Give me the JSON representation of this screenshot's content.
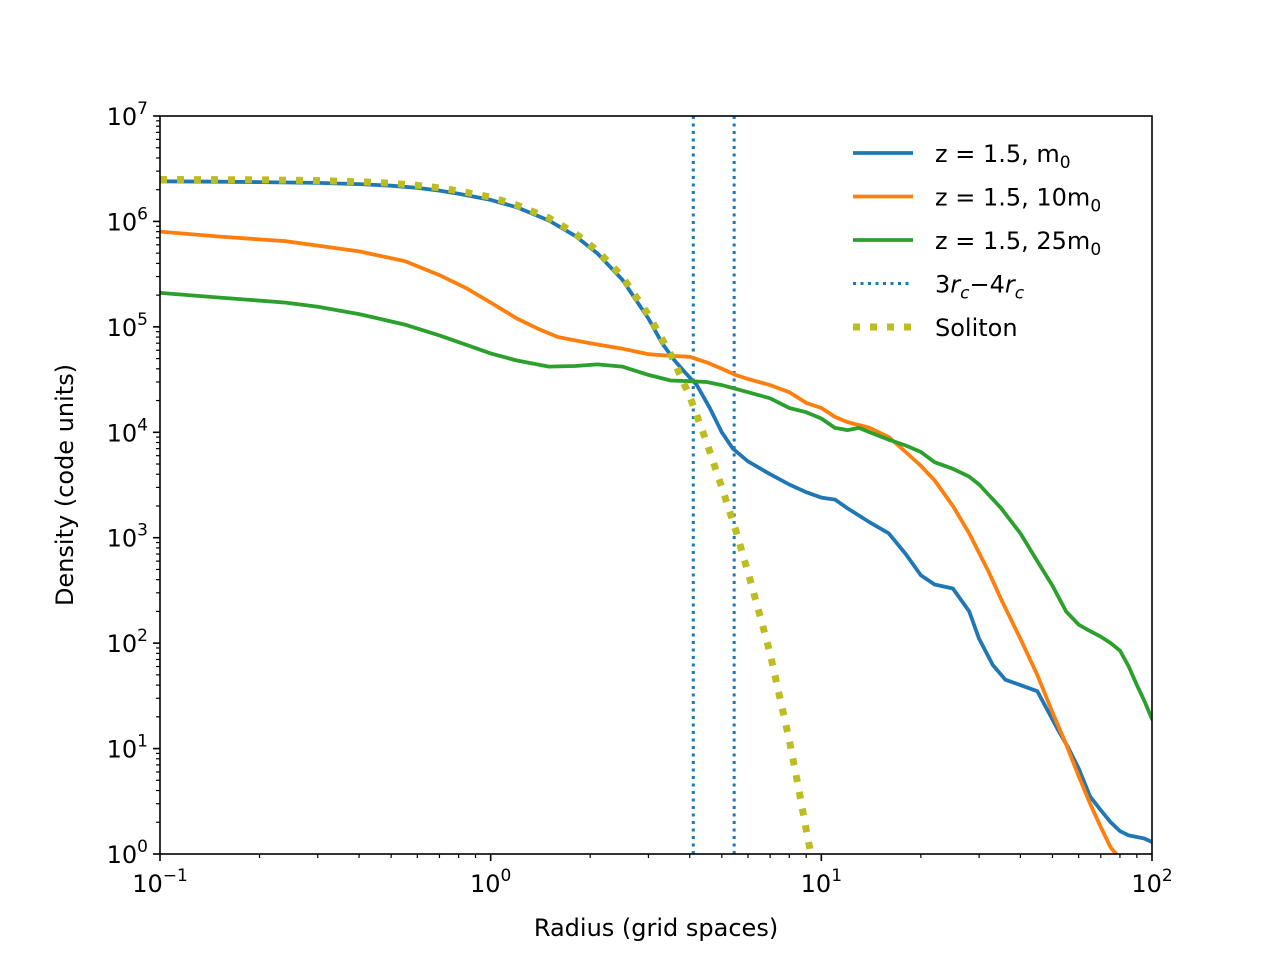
{
  "chart_data": {
    "type": "line",
    "title": "",
    "xlabel": "Radius (grid spaces)",
    "ylabel": "Density (code units)",
    "x_scale": "log",
    "y_scale": "log",
    "xlim": [
      0.1,
      100
    ],
    "ylim": [
      1,
      10000000
    ],
    "x_ticks": [
      {
        "base": "10",
        "exp": "−1",
        "value": 0.1
      },
      {
        "base": "10",
        "exp": "0",
        "value": 1
      },
      {
        "base": "10",
        "exp": "1",
        "value": 10
      },
      {
        "base": "10",
        "exp": "2",
        "value": 100
      }
    ],
    "y_ticks": [
      {
        "base": "10",
        "exp": "0",
        "value": 1
      },
      {
        "base": "10",
        "exp": "1",
        "value": 10
      },
      {
        "base": "10",
        "exp": "2",
        "value": 100
      },
      {
        "base": "10",
        "exp": "3",
        "value": 1000
      },
      {
        "base": "10",
        "exp": "4",
        "value": 10000
      },
      {
        "base": "10",
        "exp": "5",
        "value": 100000
      },
      {
        "base": "10",
        "exp": "6",
        "value": 1000000
      },
      {
        "base": "10",
        "exp": "7",
        "value": 10000000
      }
    ],
    "grid": false,
    "legend_position": "top-right",
    "series": [
      {
        "name": "z = 1.5, m0",
        "label_main": "z = 1.5, m",
        "label_sub": "0",
        "color": "#1f77b4",
        "style": "solid",
        "points": [
          [
            0.1,
            2400000
          ],
          [
            0.15,
            2380000
          ],
          [
            0.2,
            2360000
          ],
          [
            0.3,
            2320000
          ],
          [
            0.4,
            2260000
          ],
          [
            0.5,
            2180000
          ],
          [
            0.6,
            2080000
          ],
          [
            0.7,
            1960000
          ],
          [
            0.8,
            1830000
          ],
          [
            1.0,
            1600000
          ],
          [
            1.2,
            1360000
          ],
          [
            1.5,
            1020000
          ],
          [
            1.8,
            730000
          ],
          [
            2.1,
            500000
          ],
          [
            2.5,
            280000
          ],
          [
            3.0,
            120000
          ],
          [
            3.3,
            70000
          ],
          [
            3.6,
            48000
          ],
          [
            3.9,
            36000
          ],
          [
            4.2,
            28000
          ],
          [
            4.6,
            17000
          ],
          [
            5.0,
            10000
          ],
          [
            5.4,
            7000
          ],
          [
            6.0,
            5300
          ],
          [
            7.0,
            4000
          ],
          [
            8.0,
            3200
          ],
          [
            9.0,
            2700
          ],
          [
            10.0,
            2400
          ],
          [
            11.0,
            2300
          ],
          [
            12.0,
            1900
          ],
          [
            14.0,
            1400
          ],
          [
            16.0,
            1100
          ],
          [
            18.0,
            700
          ],
          [
            20.0,
            440
          ],
          [
            22.0,
            360
          ],
          [
            25.0,
            330
          ],
          [
            28.0,
            200
          ],
          [
            30.0,
            110
          ],
          [
            33.0,
            62
          ],
          [
            36.0,
            45
          ],
          [
            40.0,
            40
          ],
          [
            45.0,
            35
          ],
          [
            48.0,
            24
          ],
          [
            52.0,
            15
          ],
          [
            56.0,
            10
          ],
          [
            60.0,
            6.5
          ],
          [
            65.0,
            3.5
          ],
          [
            70.0,
            2.6
          ],
          [
            75.0,
            2.0
          ],
          [
            80.0,
            1.65
          ],
          [
            85.0,
            1.5
          ],
          [
            90.0,
            1.45
          ],
          [
            95.0,
            1.4
          ],
          [
            100.0,
            1.3
          ]
        ]
      },
      {
        "name": "z = 1.5, 10m0",
        "label_main": "z = 1.5, 10m",
        "label_sub": "0",
        "color": "#ff7f0e",
        "style": "solid",
        "points": [
          [
            0.1,
            800000
          ],
          [
            0.15,
            720000
          ],
          [
            0.24,
            650000
          ],
          [
            0.3,
            590000
          ],
          [
            0.4,
            520000
          ],
          [
            0.55,
            420000
          ],
          [
            0.7,
            310000
          ],
          [
            0.85,
            230000
          ],
          [
            1.0,
            170000
          ],
          [
            1.2,
            120000
          ],
          [
            1.4,
            95000
          ],
          [
            1.6,
            80000
          ],
          [
            2.0,
            70000
          ],
          [
            2.5,
            62000
          ],
          [
            3.0,
            55000
          ],
          [
            3.5,
            53000
          ],
          [
            4.0,
            52000
          ],
          [
            4.5,
            46000
          ],
          [
            5.0,
            40000
          ],
          [
            5.5,
            35000
          ],
          [
            6.0,
            32000
          ],
          [
            7.0,
            28000
          ],
          [
            8.0,
            24000
          ],
          [
            9.0,
            19000
          ],
          [
            10.0,
            17000
          ],
          [
            11.0,
            14000
          ],
          [
            12.0,
            12500
          ],
          [
            14.0,
            11000
          ],
          [
            16.0,
            9000
          ],
          [
            18.0,
            6500
          ],
          [
            20.0,
            4800
          ],
          [
            22.0,
            3500
          ],
          [
            25.0,
            2000
          ],
          [
            28.0,
            1100
          ],
          [
            32.0,
            480
          ],
          [
            35.0,
            260
          ],
          [
            40.0,
            110
          ],
          [
            45.0,
            50
          ],
          [
            50.0,
            22
          ],
          [
            55.0,
            11
          ],
          [
            60.0,
            5.5
          ],
          [
            65.0,
            3.0
          ],
          [
            70.0,
            1.8
          ],
          [
            75.0,
            1.15
          ],
          [
            78.0,
            1.0
          ]
        ]
      },
      {
        "name": "z = 1.5, 25m0",
        "label_main": "z = 1.5, 25m",
        "label_sub": "0",
        "color": "#2ca02c",
        "style": "solid",
        "points": [
          [
            0.1,
            210000
          ],
          [
            0.15,
            190000
          ],
          [
            0.24,
            170000
          ],
          [
            0.3,
            155000
          ],
          [
            0.4,
            132000
          ],
          [
            0.55,
            105000
          ],
          [
            0.7,
            83000
          ],
          [
            0.85,
            67000
          ],
          [
            1.0,
            56000
          ],
          [
            1.2,
            48000
          ],
          [
            1.5,
            42000
          ],
          [
            1.8,
            42500
          ],
          [
            2.1,
            44000
          ],
          [
            2.5,
            42000
          ],
          [
            3.0,
            35000
          ],
          [
            3.5,
            31000
          ],
          [
            4.0,
            30500
          ],
          [
            4.5,
            30000
          ],
          [
            5.0,
            28000
          ],
          [
            6.0,
            24000
          ],
          [
            7.0,
            21000
          ],
          [
            8.0,
            17000
          ],
          [
            9.0,
            15500
          ],
          [
            10.0,
            13500
          ],
          [
            11.0,
            11000
          ],
          [
            12.0,
            10500
          ],
          [
            13.0,
            11000
          ],
          [
            14.0,
            10000
          ],
          [
            16.0,
            8500
          ],
          [
            18.0,
            7500
          ],
          [
            20.0,
            6500
          ],
          [
            22.0,
            5200
          ],
          [
            25.0,
            4500
          ],
          [
            28.0,
            3800
          ],
          [
            30.0,
            3200
          ],
          [
            35.0,
            1900
          ],
          [
            40.0,
            1100
          ],
          [
            45.0,
            600
          ],
          [
            50.0,
            350
          ],
          [
            55.0,
            200
          ],
          [
            60.0,
            150
          ],
          [
            65.0,
            130
          ],
          [
            70.0,
            115
          ],
          [
            75.0,
            100
          ],
          [
            80.0,
            85
          ],
          [
            85.0,
            60
          ],
          [
            90.0,
            40
          ],
          [
            95.0,
            28
          ],
          [
            100.0,
            19
          ]
        ]
      },
      {
        "name": "Soliton",
        "label_main": "Soliton",
        "label_sub": "",
        "color": "#bcbd22",
        "style": "dotted-thick",
        "points": [
          [
            0.1,
            2500000
          ],
          [
            0.2,
            2480000
          ],
          [
            0.3,
            2440000
          ],
          [
            0.4,
            2380000
          ],
          [
            0.5,
            2300000
          ],
          [
            0.6,
            2200000
          ],
          [
            0.7,
            2080000
          ],
          [
            0.8,
            1950000
          ],
          [
            1.0,
            1700000
          ],
          [
            1.2,
            1430000
          ],
          [
            1.5,
            1080000
          ],
          [
            1.8,
            770000
          ],
          [
            2.1,
            530000
          ],
          [
            2.5,
            300000
          ],
          [
            3.0,
            130000
          ],
          [
            3.5,
            55000
          ],
          [
            4.0,
            22000
          ],
          [
            4.5,
            8000
          ],
          [
            5.0,
            3000
          ],
          [
            5.5,
            1200
          ],
          [
            6.0,
            470
          ],
          [
            6.5,
            190
          ],
          [
            7.0,
            80
          ],
          [
            7.5,
            30
          ],
          [
            8.0,
            12
          ],
          [
            8.5,
            4.5
          ],
          [
            9.0,
            1.7
          ],
          [
            9.3,
            1.0
          ]
        ]
      }
    ],
    "vertical_lines": {
      "name": "3rc - 4rc",
      "label_pre": "3",
      "label_mid": "−4",
      "label_var": "r",
      "label_sub": "c",
      "color": "#1f77b4",
      "style": "dotted",
      "x": [
        4.1,
        5.45
      ]
    },
    "legend_order": [
      "z = 1.5, m0",
      "z = 1.5, 10m0",
      "z = 1.5, 25m0",
      "3rc - 4rc",
      "Soliton"
    ]
  }
}
